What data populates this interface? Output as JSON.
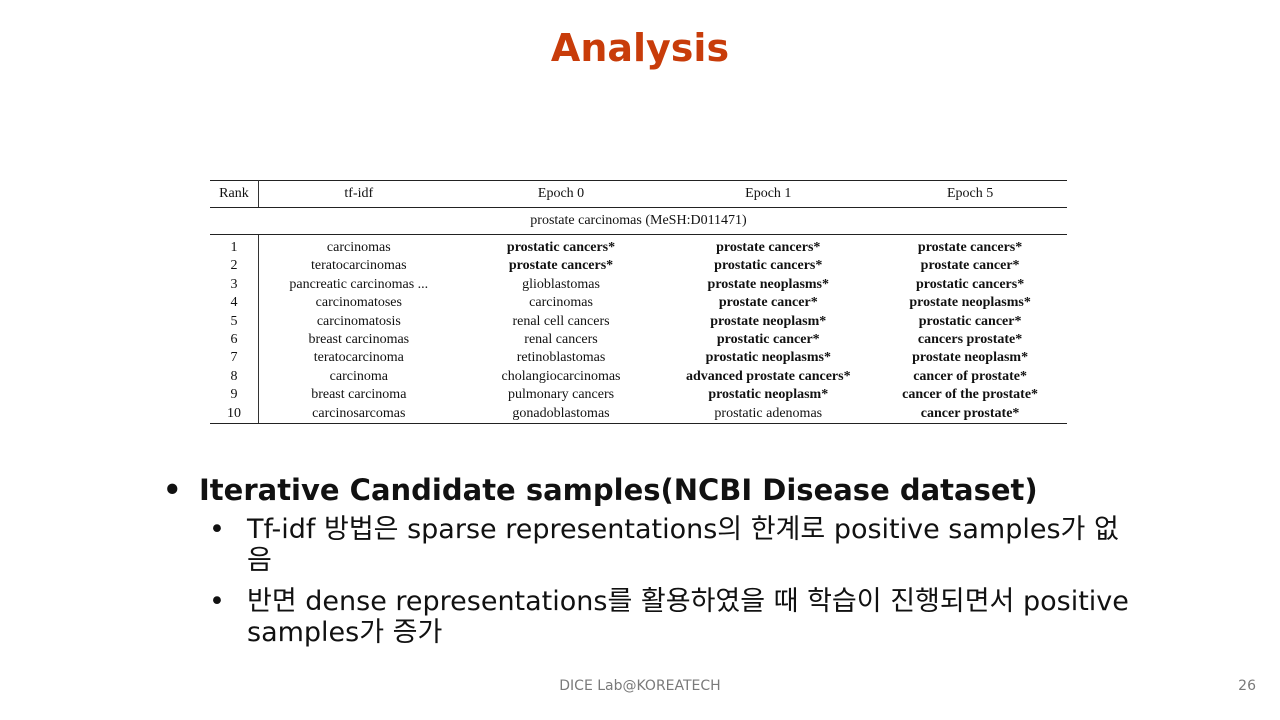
{
  "slide": {
    "title": "Analysis",
    "footer": "DICE Lab@KOREATECH",
    "page_number": "26"
  },
  "table": {
    "headers": [
      "Rank",
      "tf-idf",
      "Epoch 0",
      "Epoch 1",
      "Epoch 5"
    ],
    "group_label": "prostate carcinomas (MeSH:D011471)",
    "rows": [
      {
        "rank": "1",
        "tfidf": "carcinomas",
        "e0": "prostatic cancers*",
        "e1": "prostate cancers*",
        "e5": "prostate cancers*"
      },
      {
        "rank": "2",
        "tfidf": "teratocarcinomas",
        "e0": "prostate cancers*",
        "e1": "prostatic cancers*",
        "e5": "prostate cancer*"
      },
      {
        "rank": "3",
        "tfidf": "pancreatic carcinomas ...",
        "e0": "glioblastomas",
        "e1": "prostate neoplasms*",
        "e5": "prostatic cancers*"
      },
      {
        "rank": "4",
        "tfidf": "carcinomatoses",
        "e0": "carcinomas",
        "e1": "prostate cancer*",
        "e5": "prostate neoplasms*"
      },
      {
        "rank": "5",
        "tfidf": "carcinomatosis",
        "e0": "renal cell cancers",
        "e1": "prostate neoplasm*",
        "e5": "prostatic cancer*"
      },
      {
        "rank": "6",
        "tfidf": "breast carcinomas",
        "e0": "renal cancers",
        "e1": "prostatic cancer*",
        "e5": "cancers prostate*"
      },
      {
        "rank": "7",
        "tfidf": "teratocarcinoma",
        "e0": "retinoblastomas",
        "e1": "prostatic neoplasms*",
        "e5": "prostate neoplasm*"
      },
      {
        "rank": "8",
        "tfidf": "carcinoma",
        "e0": "cholangiocarcinomas",
        "e1": "advanced prostate cancers*",
        "e5": "cancer of prostate*"
      },
      {
        "rank": "9",
        "tfidf": "breast carcinoma",
        "e0": "pulmonary cancers",
        "e1": "prostatic neoplasm*",
        "e5": "cancer of the prostate*"
      },
      {
        "rank": "10",
        "tfidf": "carcinosarcomas",
        "e0": "gonadoblastomas",
        "e1": "prostatic adenomas",
        "e5": "cancer prostate*"
      }
    ]
  },
  "bullets": {
    "main": "Iterative Candidate samples(NCBI Disease dataset)",
    "sub": [
      "Tf-idf 방법은 sparse representations의 한계로 positive samples가 없음",
      "반면 dense representations를 활용하였을 때 학습이 진행되면서 positive samples가 증가"
    ],
    "bullet_glyph": "•"
  }
}
